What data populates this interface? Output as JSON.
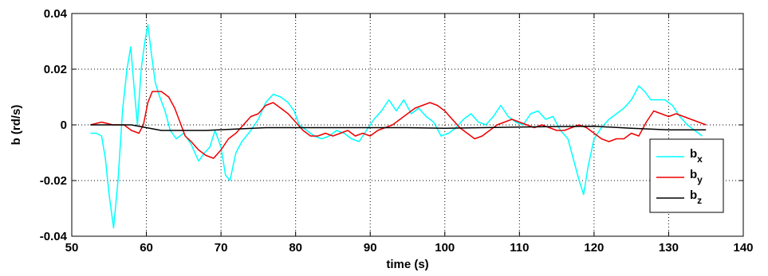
{
  "chart_data": {
    "type": "line",
    "xlabel": "time (s)",
    "ylabel": "b (rd/s)",
    "xlim": [
      50,
      140
    ],
    "ylim": [
      -0.04,
      0.04
    ],
    "xticks": [
      "50",
      "60",
      "70",
      "80",
      "90",
      "100",
      "110",
      "120",
      "130",
      "140"
    ],
    "yticks": [
      "0.04",
      "0.02",
      "0",
      "-0.02",
      "-0.04"
    ],
    "grid": true,
    "legend_position": "lower-right",
    "series": [
      {
        "name": "x",
        "legend_base": "b",
        "legend_sub": "x",
        "color": "#00ffff",
        "points": [
          [
            52.5,
            -0.003
          ],
          [
            53.3,
            -0.003
          ],
          [
            54.0,
            -0.004
          ],
          [
            54.5,
            -0.012
          ],
          [
            55.0,
            -0.025
          ],
          [
            55.6,
            -0.037
          ],
          [
            56.2,
            -0.02
          ],
          [
            56.8,
            0.005
          ],
          [
            57.4,
            0.02
          ],
          [
            57.9,
            0.028
          ],
          [
            58.3,
            0.015
          ],
          [
            58.8,
            0.0
          ],
          [
            59.3,
            0.02
          ],
          [
            59.8,
            0.03
          ],
          [
            60.2,
            0.036
          ],
          [
            60.7,
            0.025
          ],
          [
            61.2,
            0.015
          ],
          [
            61.8,
            0.01
          ],
          [
            62.5,
            0.005
          ],
          [
            63.2,
            -0.002
          ],
          [
            64.0,
            -0.005
          ],
          [
            65.0,
            -0.003
          ],
          [
            66.0,
            -0.007
          ],
          [
            67.0,
            -0.013
          ],
          [
            67.8,
            -0.01
          ],
          [
            68.5,
            -0.008
          ],
          [
            69.2,
            -0.002
          ],
          [
            70.0,
            -0.008
          ],
          [
            70.6,
            -0.018
          ],
          [
            71.2,
            -0.02
          ],
          [
            72.0,
            -0.01
          ],
          [
            72.8,
            -0.006
          ],
          [
            74.0,
            -0.002
          ],
          [
            75.0,
            0.002
          ],
          [
            76.0,
            0.008
          ],
          [
            77.0,
            0.011
          ],
          [
            78.0,
            0.01
          ],
          [
            79.0,
            0.008
          ],
          [
            79.8,
            0.005
          ],
          [
            80.5,
            0.0
          ],
          [
            81.5,
            -0.002
          ],
          [
            82.5,
            -0.004
          ],
          [
            83.5,
            -0.005
          ],
          [
            84.5,
            -0.004
          ],
          [
            85.5,
            -0.002
          ],
          [
            86.5,
            -0.003
          ],
          [
            87.5,
            -0.005
          ],
          [
            88.5,
            -0.006
          ],
          [
            89.5,
            -0.002
          ],
          [
            90.5,
            0.002
          ],
          [
            91.5,
            0.005
          ],
          [
            92.5,
            0.009
          ],
          [
            93.5,
            0.005
          ],
          [
            94.5,
            0.009
          ],
          [
            95.5,
            0.004
          ],
          [
            96.5,
            0.006
          ],
          [
            97.5,
            0.003
          ],
          [
            98.5,
            0.001
          ],
          [
            99.5,
            -0.004
          ],
          [
            100.5,
            -0.003
          ],
          [
            101.5,
            -0.001
          ],
          [
            102.5,
            0.002
          ],
          [
            103.5,
            0.004
          ],
          [
            104.5,
            0.001
          ],
          [
            105.5,
            0.0
          ],
          [
            106.5,
            0.003
          ],
          [
            107.5,
            0.007
          ],
          [
            108.5,
            0.003
          ],
          [
            109.5,
            0.001
          ],
          [
            110.5,
            0.0
          ],
          [
            111.5,
            0.004
          ],
          [
            112.5,
            0.005
          ],
          [
            113.5,
            0.002
          ],
          [
            114.5,
            0.003
          ],
          [
            115.5,
            -0.002
          ],
          [
            116.5,
            -0.005
          ],
          [
            117.2,
            -0.012
          ],
          [
            118.0,
            -0.02
          ],
          [
            118.6,
            -0.025
          ],
          [
            119.2,
            -0.015
          ],
          [
            120.0,
            -0.005
          ],
          [
            121.0,
            -0.001
          ],
          [
            122.0,
            0.002
          ],
          [
            123.0,
            0.004
          ],
          [
            124.0,
            0.006
          ],
          [
            125.0,
            0.009
          ],
          [
            126.0,
            0.014
          ],
          [
            126.8,
            0.012
          ],
          [
            127.6,
            0.009
          ],
          [
            128.5,
            0.009
          ],
          [
            129.5,
            0.009
          ],
          [
            130.5,
            0.007
          ],
          [
            131.5,
            0.003
          ],
          [
            132.5,
            0.0
          ],
          [
            133.5,
            -0.002
          ],
          [
            134.5,
            -0.004
          ]
        ]
      },
      {
        "name": "y",
        "legend_base": "b",
        "legend_sub": "y",
        "color": "#ee0000",
        "points": [
          [
            52.5,
            0.0
          ],
          [
            54.0,
            0.001
          ],
          [
            55.5,
            0.0
          ],
          [
            57.0,
            0.0
          ],
          [
            58.0,
            -0.002
          ],
          [
            59.0,
            -0.003
          ],
          [
            59.6,
            0.0
          ],
          [
            60.2,
            0.008
          ],
          [
            60.8,
            0.012
          ],
          [
            62.0,
            0.012
          ],
          [
            63.0,
            0.01
          ],
          [
            63.8,
            0.006
          ],
          [
            64.5,
            0.001
          ],
          [
            65.2,
            -0.004
          ],
          [
            66.0,
            -0.006
          ],
          [
            67.0,
            -0.009
          ],
          [
            68.0,
            -0.011
          ],
          [
            69.0,
            -0.012
          ],
          [
            70.0,
            -0.009
          ],
          [
            71.0,
            -0.005
          ],
          [
            72.0,
            -0.003
          ],
          [
            73.0,
            0.0
          ],
          [
            74.0,
            0.003
          ],
          [
            75.0,
            0.004
          ],
          [
            76.0,
            0.007
          ],
          [
            77.0,
            0.008
          ],
          [
            78.0,
            0.006
          ],
          [
            79.0,
            0.004
          ],
          [
            80.0,
            0.001
          ],
          [
            81.0,
            -0.002
          ],
          [
            82.0,
            -0.004
          ],
          [
            83.0,
            -0.004
          ],
          [
            84.0,
            -0.003
          ],
          [
            85.0,
            -0.004
          ],
          [
            86.0,
            -0.003
          ],
          [
            87.0,
            -0.002
          ],
          [
            88.0,
            -0.004
          ],
          [
            89.0,
            -0.003
          ],
          [
            90.0,
            -0.004
          ],
          [
            91.0,
            -0.002
          ],
          [
            92.0,
            -0.001
          ],
          [
            93.0,
            0.0
          ],
          [
            94.0,
            0.002
          ],
          [
            95.0,
            0.004
          ],
          [
            96.0,
            0.006
          ],
          [
            97.0,
            0.007
          ],
          [
            98.0,
            0.008
          ],
          [
            99.0,
            0.007
          ],
          [
            100.0,
            0.005
          ],
          [
            101.0,
            0.002
          ],
          [
            102.0,
            -0.001
          ],
          [
            103.0,
            -0.003
          ],
          [
            104.0,
            -0.005
          ],
          [
            105.0,
            -0.004
          ],
          [
            106.0,
            -0.002
          ],
          [
            107.0,
            0.0
          ],
          [
            108.0,
            0.001
          ],
          [
            109.0,
            0.002
          ],
          [
            110.0,
            0.001
          ],
          [
            111.0,
            0.0
          ],
          [
            112.0,
            -0.001
          ],
          [
            113.0,
            0.0
          ],
          [
            114.0,
            -0.001
          ],
          [
            115.0,
            -0.002
          ],
          [
            116.0,
            -0.002
          ],
          [
            117.0,
            -0.001
          ],
          [
            118.0,
            0.0
          ],
          [
            119.0,
            -0.001
          ],
          [
            120.0,
            -0.003
          ],
          [
            121.0,
            -0.005
          ],
          [
            122.0,
            -0.006
          ],
          [
            123.0,
            -0.005
          ],
          [
            124.0,
            -0.005
          ],
          [
            125.0,
            -0.003
          ],
          [
            126.0,
            -0.004
          ],
          [
            127.0,
            0.001
          ],
          [
            128.0,
            0.005
          ],
          [
            129.0,
            0.004
          ],
          [
            130.0,
            0.003
          ],
          [
            131.0,
            0.004
          ],
          [
            132.0,
            0.003
          ],
          [
            133.0,
            0.002
          ],
          [
            134.0,
            0.001
          ],
          [
            135.0,
            0.0
          ]
        ]
      },
      {
        "name": "z",
        "legend_base": "b",
        "legend_sub": "z",
        "color": "#000000",
        "points": [
          [
            52.5,
            0.0
          ],
          [
            55.0,
            0.0
          ],
          [
            58.0,
            0.0
          ],
          [
            60.0,
            -0.001
          ],
          [
            62.0,
            -0.002
          ],
          [
            65.0,
            -0.002
          ],
          [
            68.0,
            -0.002
          ],
          [
            72.0,
            -0.0015
          ],
          [
            76.0,
            -0.001
          ],
          [
            80.0,
            -0.001
          ],
          [
            85.0,
            -0.001
          ],
          [
            90.0,
            -0.001
          ],
          [
            95.0,
            -0.001
          ],
          [
            100.0,
            -0.0012
          ],
          [
            105.0,
            -0.001
          ],
          [
            110.0,
            -0.0008
          ],
          [
            115.0,
            -0.0006
          ],
          [
            120.0,
            -0.0005
          ],
          [
            125.0,
            -0.0012
          ],
          [
            130.0,
            -0.0018
          ],
          [
            135.0,
            -0.0018
          ]
        ]
      }
    ]
  }
}
